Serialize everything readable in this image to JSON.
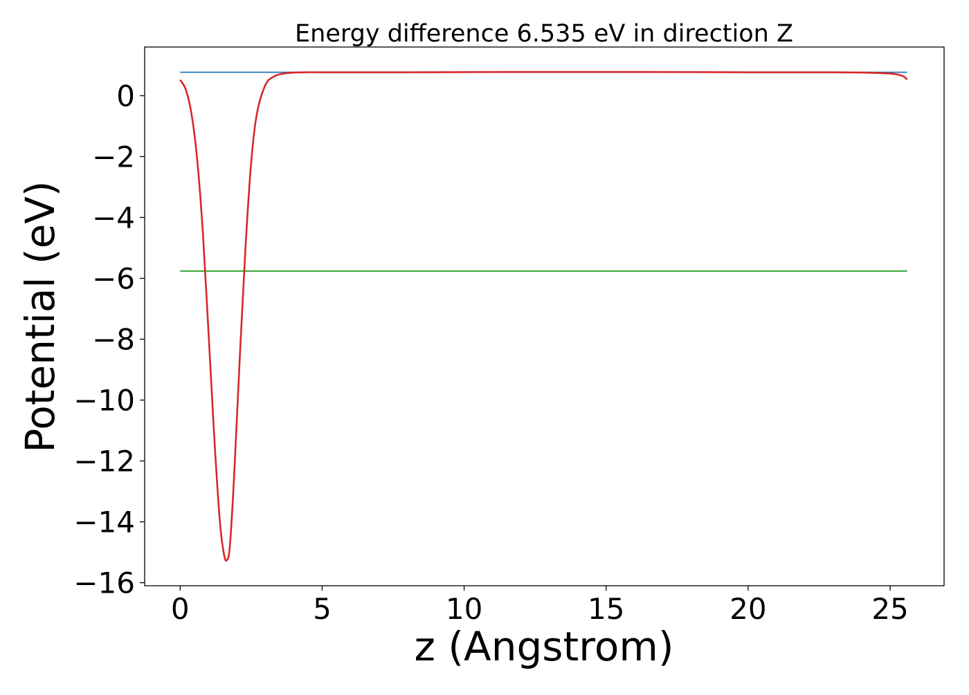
{
  "chart_data": {
    "type": "line",
    "title": "Energy difference 6.535 eV in direction Z",
    "xlabel": "z (Angstrom)",
    "ylabel": "Potential (eV)",
    "xlim": [
      -1.25,
      26.9
    ],
    "ylim": [
      -16.1,
      1.6
    ],
    "x_ticks": [
      0,
      5,
      10,
      15,
      20,
      25
    ],
    "x_tick_labels": [
      "0",
      "5",
      "10",
      "15",
      "20",
      "25"
    ],
    "y_ticks": [
      0,
      -2,
      -4,
      -6,
      -8,
      -10,
      -12,
      -14,
      -16
    ],
    "y_tick_labels": [
      "0",
      "−2",
      "−4",
      "−6",
      "−8",
      "−10",
      "−12",
      "−14",
      "−16"
    ],
    "grid": false,
    "legend": "none",
    "series": [
      {
        "color": "#1f77b4",
        "kind": "hline",
        "x": [
          0,
          25.6
        ],
        "y": [
          0.77,
          0.77
        ]
      },
      {
        "color": "#2ca02c",
        "kind": "hline",
        "x": [
          0,
          25.6
        ],
        "y": [
          -5.76,
          -5.76
        ]
      },
      {
        "color": "#d62728",
        "kind": "curve",
        "x": [
          0,
          0.2,
          0.4,
          0.6,
          0.8,
          1.0,
          1.2,
          1.4,
          1.55,
          1.65,
          1.75,
          1.9,
          2.1,
          2.3,
          2.5,
          2.7,
          3.0,
          3.3,
          3.6,
          4.0,
          4.5,
          5,
          8,
          12,
          16,
          20,
          23,
          24,
          24.5,
          25,
          25.3,
          25.5,
          25.6
        ],
        "y": [
          0.52,
          0.2,
          -0.6,
          -2.1,
          -4.5,
          -7.8,
          -11.2,
          -14.0,
          -15.1,
          -15.25,
          -14.8,
          -12.5,
          -8.6,
          -5.0,
          -2.2,
          -0.6,
          0.35,
          0.63,
          0.72,
          0.76,
          0.77,
          0.77,
          0.77,
          0.78,
          0.78,
          0.77,
          0.77,
          0.76,
          0.75,
          0.73,
          0.69,
          0.62,
          0.53
        ]
      }
    ]
  }
}
